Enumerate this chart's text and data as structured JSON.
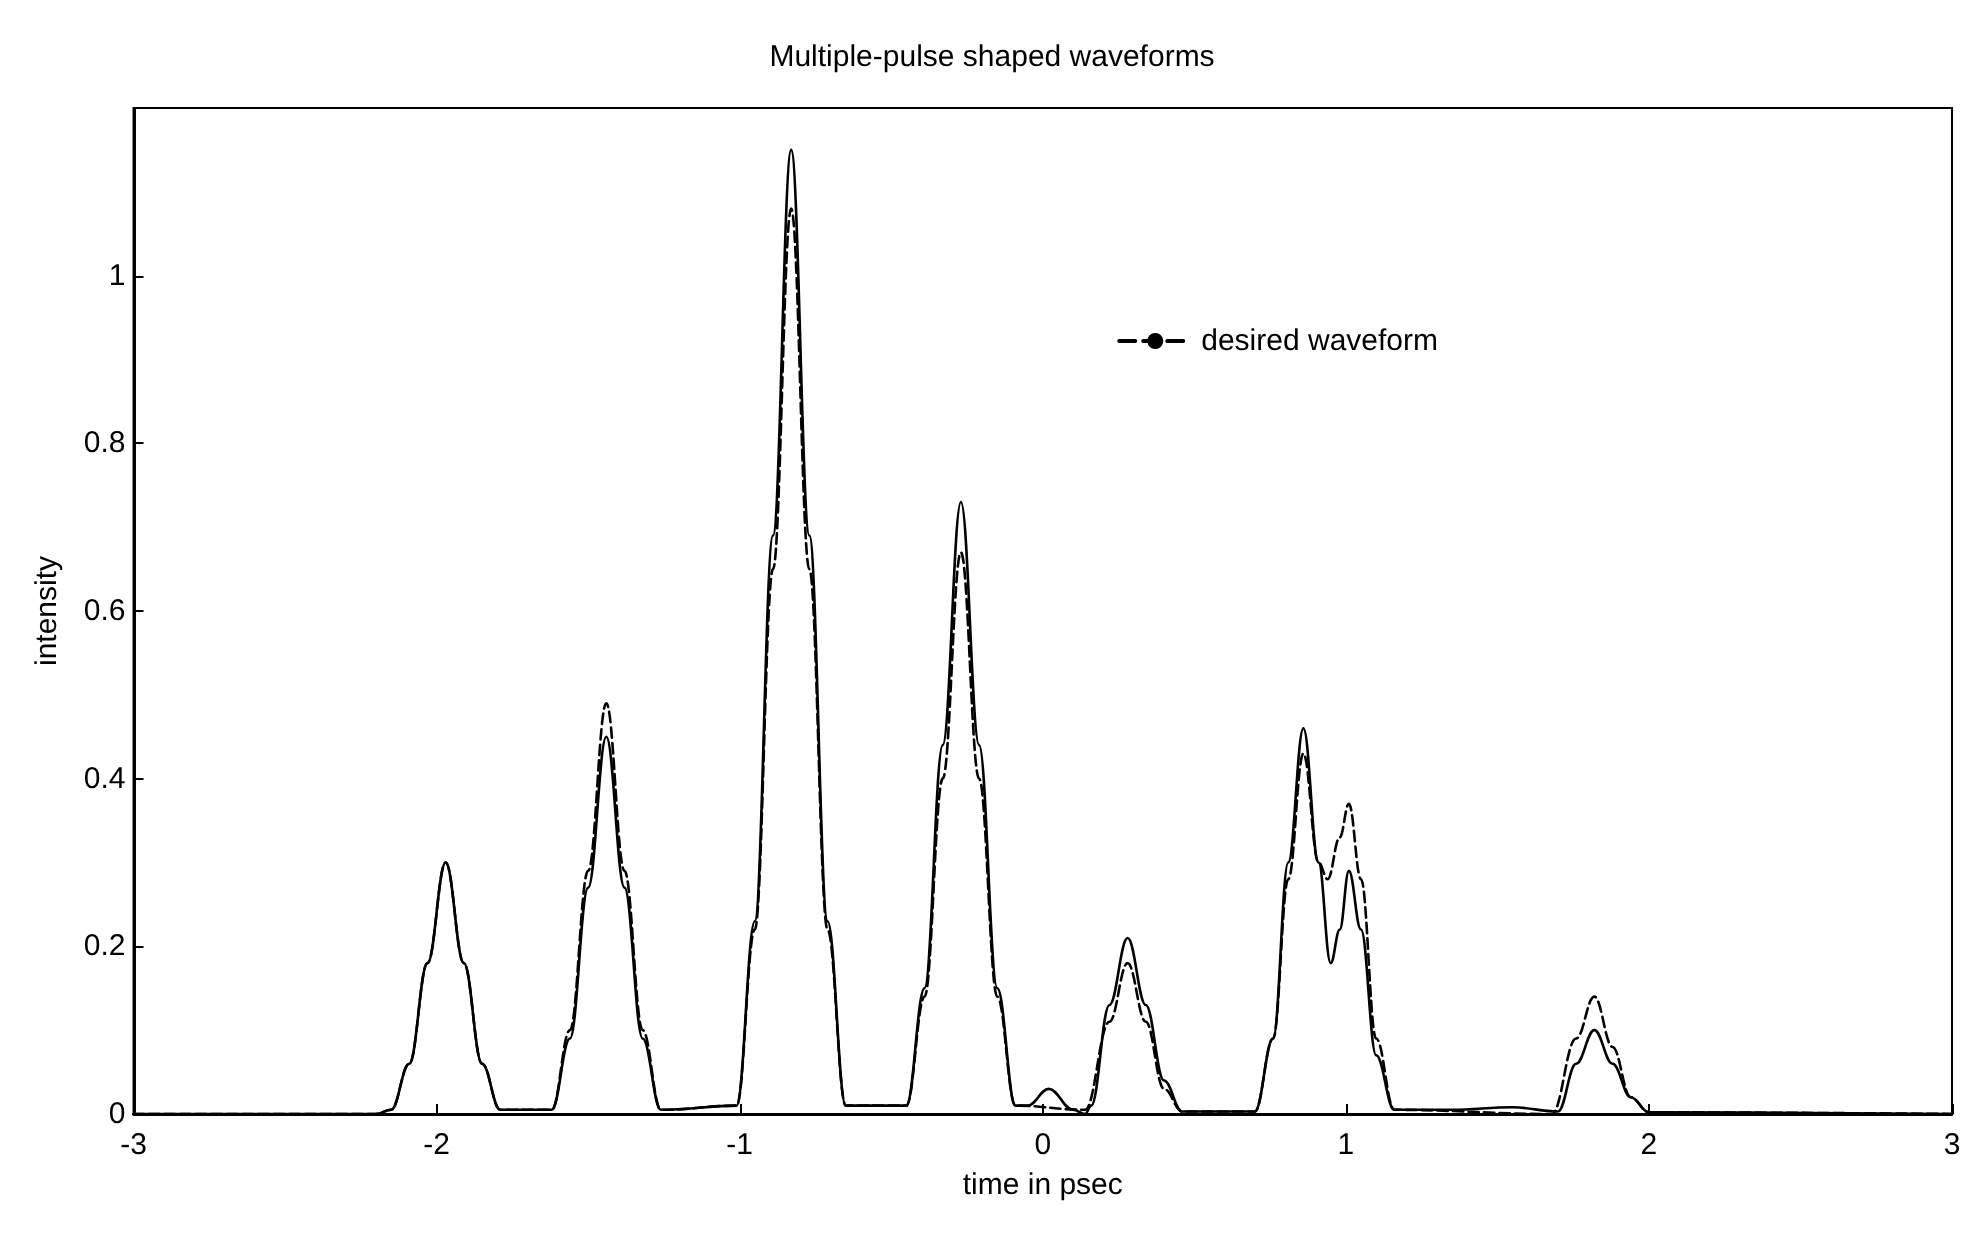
{
  "chart_data": {
    "type": "line",
    "title": "Multiple-pulse shaped waveforms",
    "xlabel": "time in psec",
    "ylabel": "intensity",
    "xlim": [
      -3,
      3
    ],
    "xticks": [
      -3,
      -2,
      -1,
      0,
      1,
      2,
      3
    ],
    "ylim": [
      0,
      1.2
    ],
    "yticks": [
      0,
      0.2,
      0.4,
      0.6,
      0.8,
      1
    ],
    "grid": false,
    "legend": "top right",
    "marker": "none",
    "series": [
      {
        "color": "#000000",
        "line_style": "solid",
        "x": [
          -3,
          -2.2,
          -2.15,
          -2.09,
          -2.03,
          -1.97,
          -1.91,
          -1.85,
          -1.79,
          -1.62,
          -1.56,
          -1.5,
          -1.44,
          -1.38,
          -1.32,
          -1.26,
          -1.01,
          -0.95,
          -0.89,
          -0.83,
          -0.77,
          -0.71,
          -0.65,
          -0.45,
          -0.39,
          -0.33,
          -0.27,
          -0.21,
          -0.15,
          -0.09,
          -0.05,
          0.02,
          0.1,
          0.14,
          0.16,
          0.22,
          0.28,
          0.34,
          0.4,
          0.46,
          0.7,
          0.76,
          0.81,
          0.86,
          0.91,
          0.95,
          0.98,
          1.01,
          1.05,
          1.1,
          1.16,
          1.35,
          1.55,
          1.7,
          1.76,
          1.82,
          1.88,
          1.94,
          2,
          3
        ],
        "values": [
          0,
          0,
          0.005,
          0.06,
          0.18,
          0.3,
          0.18,
          0.06,
          0.005,
          0.005,
          0.09,
          0.27,
          0.45,
          0.27,
          0.09,
          0.005,
          0.01,
          0.23,
          0.69,
          1.15,
          0.69,
          0.23,
          0.01,
          0.01,
          0.15,
          0.44,
          0.73,
          0.44,
          0.15,
          0.01,
          0.01,
          0.03,
          0.005,
          0,
          0.01,
          0.13,
          0.21,
          0.13,
          0.04,
          0.003,
          0.003,
          0.09,
          0.3,
          0.46,
          0.3,
          0.18,
          0.22,
          0.29,
          0.22,
          0.07,
          0.005,
          0.005,
          0.008,
          0.003,
          0.06,
          0.1,
          0.06,
          0.02,
          0.002,
          0
        ]
      },
      {
        "name": "desired waveform",
        "color": "#000000",
        "line_style": "dashed",
        "x": [
          -3,
          -2.2,
          -2.15,
          -2.09,
          -2.03,
          -1.97,
          -1.91,
          -1.85,
          -1.79,
          -1.62,
          -1.56,
          -1.5,
          -1.44,
          -1.38,
          -1.32,
          -1.26,
          -1.01,
          -0.95,
          -0.89,
          -0.83,
          -0.77,
          -0.71,
          -0.65,
          -0.45,
          -0.39,
          -0.33,
          -0.27,
          -0.21,
          -0.15,
          -0.09,
          0.14,
          0.22,
          0.28,
          0.34,
          0.4,
          0.46,
          0.7,
          0.76,
          0.81,
          0.86,
          0.91,
          0.94,
          0.98,
          1.01,
          1.05,
          1.1,
          1.16,
          1.68,
          1.76,
          1.82,
          1.88,
          1.94,
          2,
          3
        ],
        "values": [
          0,
          0,
          0.005,
          0.06,
          0.18,
          0.3,
          0.18,
          0.06,
          0.005,
          0.005,
          0.1,
          0.29,
          0.49,
          0.29,
          0.1,
          0.005,
          0.01,
          0.22,
          0.65,
          1.08,
          0.65,
          0.22,
          0.01,
          0.01,
          0.14,
          0.4,
          0.67,
          0.4,
          0.14,
          0.01,
          0.005,
          0.11,
          0.18,
          0.11,
          0.03,
          0.003,
          0.003,
          0.09,
          0.28,
          0.43,
          0.3,
          0.28,
          0.33,
          0.37,
          0.28,
          0.09,
          0.005,
          0,
          0.09,
          0.14,
          0.08,
          0.02,
          0.002,
          0
        ]
      }
    ]
  }
}
